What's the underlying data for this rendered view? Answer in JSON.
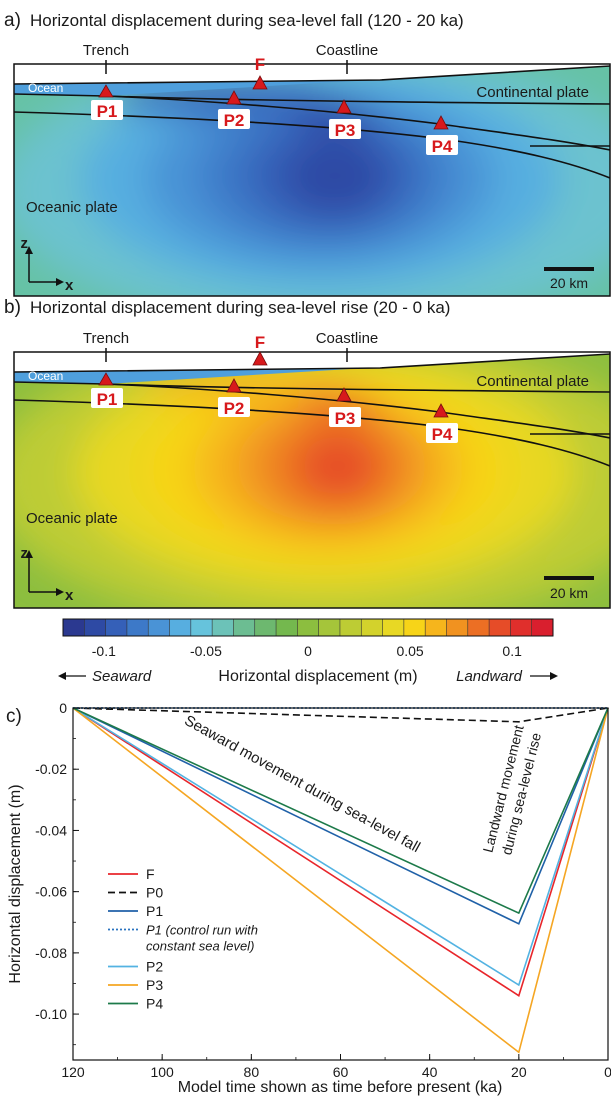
{
  "panel_a": {
    "letter": "a)",
    "title": "Horizontal displacement during sea-level fall (120 - 20 ka)",
    "trench": "Trench",
    "coastline": "Coastline",
    "ocean": "Ocean",
    "continental": "Continental plate",
    "oceanic": "Oceanic plate",
    "axis_z": "z",
    "axis_x": "x",
    "scale": "20 km",
    "markers": [
      "F",
      "P1",
      "P2",
      "P3",
      "P4"
    ]
  },
  "panel_b": {
    "letter": "b)",
    "title": "Horizontal displacement during sea-level rise (20 - 0 ka)",
    "trench": "Trench",
    "coastline": "Coastline",
    "ocean": "Ocean",
    "continental": "Continental plate",
    "oceanic": "Oceanic plate",
    "axis_z": "z",
    "axis_x": "x",
    "scale": "20 km",
    "markers": [
      "F",
      "P1",
      "P2",
      "P3",
      "P4"
    ]
  },
  "colorbar": {
    "title": "Horizontal displacement (m)",
    "ticks": [
      "-0.1",
      "-0.05",
      "0",
      "0.05",
      "0.1"
    ],
    "tick_values": [
      -0.1,
      -0.05,
      0,
      0.05,
      0.1
    ],
    "min": -0.12,
    "max": 0.12,
    "left_label": "Seaward",
    "right_label": "Landward",
    "colors": [
      "#2b3990",
      "#2e4aa4",
      "#3560b8",
      "#3d79c8",
      "#4a93d6",
      "#57aee0",
      "#66c3dc",
      "#6cc2b8",
      "#6cbd92",
      "#6db86f",
      "#74b84e",
      "#8cbe3f",
      "#a5c53a",
      "#bdcc34",
      "#d3d22c",
      "#e8d824",
      "#f7d418",
      "#f6b51c",
      "#f19220",
      "#ec6f24",
      "#e64c28",
      "#e02f2c",
      "#d91f2e"
    ]
  },
  "chart_data": {
    "type": "line",
    "panel_letter": "c)",
    "xlabel": "Model time shown as time before present (ka)",
    "ylabel": "Horizontal displacement (m)",
    "xlim": [
      120,
      0
    ],
    "ylim": [
      -0.115,
      0.0
    ],
    "x_ticks": [
      "120",
      "100",
      "80",
      "60",
      "40",
      "20",
      "0"
    ],
    "x_tick_values": [
      120,
      100,
      80,
      60,
      40,
      20,
      0
    ],
    "y_ticks": [
      "0",
      "-0.02",
      "-0.04",
      "-0.06",
      "-0.08",
      "-0.10"
    ],
    "y_tick_values": [
      0,
      -0.02,
      -0.04,
      -0.06,
      -0.08,
      -0.1
    ],
    "annotations": {
      "fall": "Seaward movement during sea-level fall",
      "rise_line1": "Landward movement",
      "rise_line2": "during sea-level rise"
    },
    "series": [
      {
        "name": "F",
        "x": [
          120,
          20,
          0
        ],
        "y": [
          0,
          -0.094,
          0
        ],
        "color": "#e8262b",
        "dash": "solid"
      },
      {
        "name": "P0",
        "x": [
          120,
          20,
          0
        ],
        "y": [
          0,
          -0.0045,
          0
        ],
        "color": "#111111",
        "dash": "dashed"
      },
      {
        "name": "P1",
        "x": [
          120,
          20,
          0
        ],
        "y": [
          0,
          -0.0705,
          0
        ],
        "color": "#2061a8",
        "dash": "solid"
      },
      {
        "name": "P1 (control run with constant sea level)",
        "legend_line1": "P1 (control run with",
        "legend_line2": "constant sea level)",
        "x": [
          120,
          20,
          0
        ],
        "y": [
          0,
          0,
          0
        ],
        "color": "#2a73c0",
        "dash": "dotted"
      },
      {
        "name": "P2",
        "x": [
          120,
          20,
          0
        ],
        "y": [
          0,
          -0.0905,
          0
        ],
        "color": "#53b3e2",
        "dash": "solid"
      },
      {
        "name": "P3",
        "x": [
          120,
          20,
          0
        ],
        "y": [
          0,
          -0.1125,
          0
        ],
        "color": "#f5a623",
        "dash": "solid"
      },
      {
        "name": "P4",
        "x": [
          120,
          20,
          0
        ],
        "y": [
          0,
          -0.067,
          0
        ],
        "color": "#1d7a4a",
        "dash": "solid"
      }
    ]
  }
}
